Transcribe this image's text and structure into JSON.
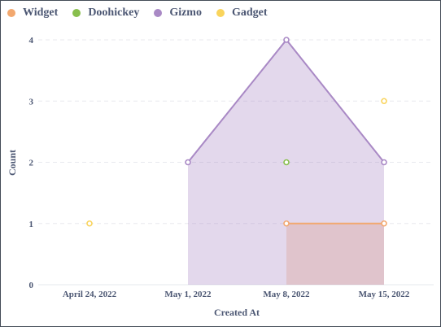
{
  "chart_data": {
    "type": "area",
    "title": "",
    "xlabel": "Created At",
    "ylabel": "Count",
    "categories": [
      "April 24, 2022",
      "May 1, 2022",
      "May 8, 2022",
      "May 15, 2022"
    ],
    "ylim": [
      0,
      4
    ],
    "yticks": [
      "0",
      "1",
      "2",
      "3",
      "4"
    ],
    "grid": "horizontal-dashed",
    "legend_position": "top-left",
    "series": [
      {
        "name": "Widget",
        "color": "#f2a86f",
        "values": [
          null,
          null,
          1,
          1
        ],
        "style": "area"
      },
      {
        "name": "Doohickey",
        "color": "#88bf4d",
        "values": [
          null,
          null,
          2,
          null
        ],
        "style": "point"
      },
      {
        "name": "Gizmo",
        "color": "#a989c5",
        "values": [
          null,
          2,
          4,
          2
        ],
        "style": "area"
      },
      {
        "name": "Gadget",
        "color": "#f9d45c",
        "values": [
          1,
          null,
          null,
          3
        ],
        "style": "point"
      }
    ]
  }
}
